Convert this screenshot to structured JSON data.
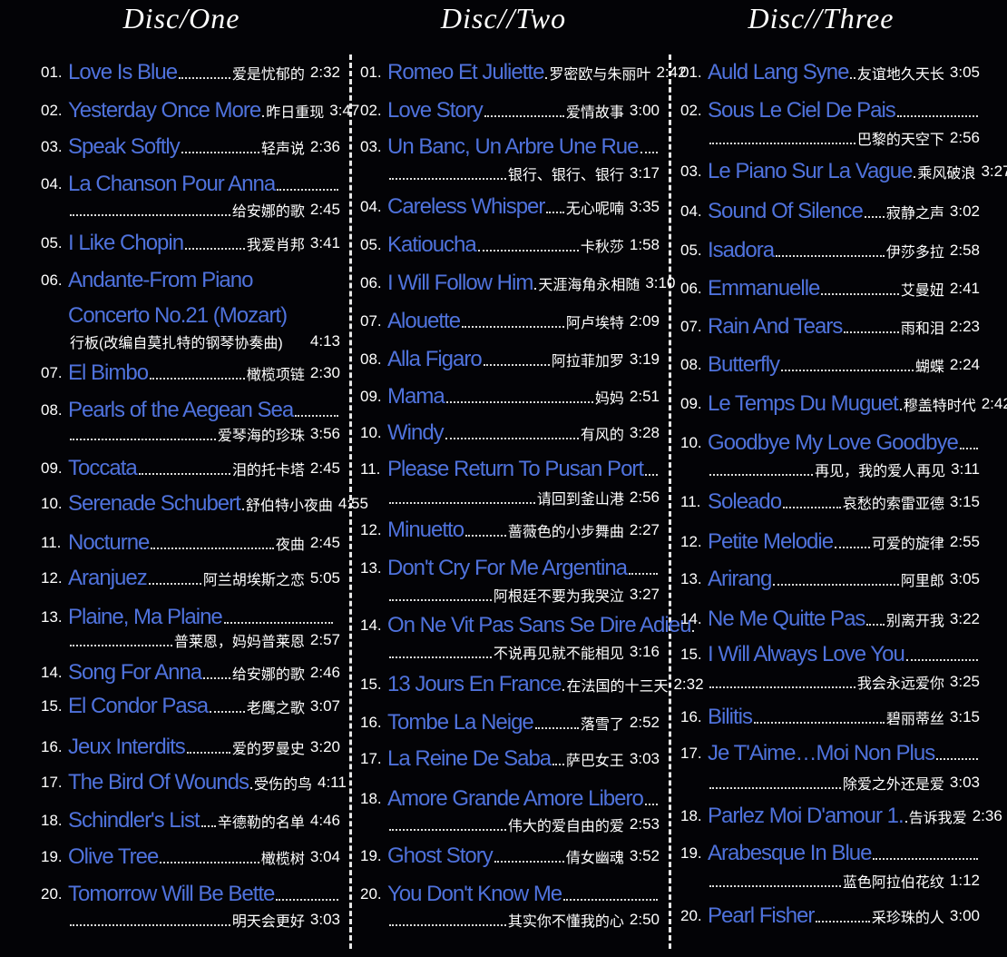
{
  "discs": [
    {
      "title": "Disc/One",
      "tracks": [
        {
          "number": "01.",
          "title": "Love Is Blue",
          "chinese": "爱是忧郁的",
          "time": "2:32"
        },
        {
          "number": "02.",
          "title": "Yesterday Once More",
          "chinese": "昨日重现",
          "time": "3:47"
        },
        {
          "number": "03.",
          "title": "Speak Softly",
          "chinese": "轻声说",
          "time": "2:36"
        },
        {
          "number": "04.",
          "title": "La Chanson Pour Anna",
          "chinese": "给安娜的歌",
          "time": "2:45"
        },
        {
          "number": "05.",
          "title": "I Like Chopin",
          "chinese": "我爱肖邦",
          "time": "3:41"
        },
        {
          "number": "06.",
          "title": "Andante-From Piano Concerto No.21 (Mozart)",
          "chinese": "行板(改编自莫扎特的钢琴协奏曲)",
          "time": "4:13"
        },
        {
          "number": "07.",
          "title": "El Bimbo",
          "chinese": "橄榄项链",
          "time": "2:30"
        },
        {
          "number": "08.",
          "title": "Pearls of the Aegean Sea",
          "chinese": "爱琴海的珍珠",
          "time": "3:56"
        },
        {
          "number": "09.",
          "title": "Toccata",
          "chinese": "泪的托卡塔",
          "time": "2:45"
        },
        {
          "number": "10.",
          "title": "Serenade Schubert",
          "chinese": "舒伯特小夜曲",
          "time": "4:55"
        },
        {
          "number": "11.",
          "title": "Nocturne",
          "chinese": "夜曲",
          "time": "2:45"
        },
        {
          "number": "12.",
          "title": "Aranjuez",
          "chinese": "阿兰胡埃斯之恋",
          "time": "5:05"
        },
        {
          "number": "13.",
          "title": "Plaine, Ma Plaine",
          "chinese": "普莱恩，妈妈普莱恩",
          "time": "2:57"
        },
        {
          "number": "14.",
          "title": "Song For Anna",
          "chinese": "给安娜的歌",
          "time": "2:46"
        },
        {
          "number": "15.",
          "title": "El Condor Pasa",
          "chinese": "老鹰之歌",
          "time": "3:07"
        },
        {
          "number": "16.",
          "title": "Jeux Interdits",
          "chinese": "爱的罗曼史",
          "time": "3:20"
        },
        {
          "number": "17.",
          "title": "The Bird Of Wounds",
          "chinese": "受伤的鸟",
          "time": "4:11"
        },
        {
          "number": "18.",
          "title": "Schindler's List",
          "chinese": "辛德勒的名单",
          "time": "4:46"
        },
        {
          "number": "19.",
          "title": "Olive Tree",
          "chinese": "橄榄树",
          "time": "3:04"
        },
        {
          "number": "20.",
          "title": "Tomorrow Will Be Bette",
          "chinese": "明天会更好",
          "time": "3:03"
        }
      ]
    },
    {
      "title": "Disc//Two",
      "tracks": [
        {
          "number": "01.",
          "title": "Romeo Et Juliette",
          "chinese": "罗密欧与朱丽叶",
          "time": "2:42"
        },
        {
          "number": "02.",
          "title": "Love Story",
          "chinese": "爱情故事",
          "time": "3:00"
        },
        {
          "number": "03.",
          "title": "Un Banc, Un Arbre Une Rue",
          "chinese": "银行、银行、银行",
          "time": "3:17"
        },
        {
          "number": "04.",
          "title": "Careless Whisper",
          "chinese": "无心呢喃",
          "time": "3:35"
        },
        {
          "number": "05.",
          "title": "Katioucha",
          "chinese": "卡秋莎",
          "time": "1:58"
        },
        {
          "number": "06.",
          "title": "I Will Follow Him",
          "chinese": "天涯海角永相随",
          "time": "3:10"
        },
        {
          "number": "07.",
          "title": "Alouette",
          "chinese": "阿卢埃特",
          "time": "2:09"
        },
        {
          "number": "08.",
          "title": "Alla Figaro",
          "chinese": "阿拉菲加罗",
          "time": "3:19"
        },
        {
          "number": "09.",
          "title": "Mama",
          "chinese": "妈妈",
          "time": "2:51"
        },
        {
          "number": "10.",
          "title": "Windy",
          "chinese": "有风的",
          "time": "3:28"
        },
        {
          "number": "11.",
          "title": "Please Return To Pusan Port",
          "chinese": "请回到釜山港",
          "time": "2:56"
        },
        {
          "number": "12.",
          "title": "Minuetto",
          "chinese": "蔷薇色的小步舞曲",
          "time": "2:27"
        },
        {
          "number": "13.",
          "title": "Don't Cry For Me Argentina",
          "chinese": "阿根廷不要为我哭泣",
          "time": "3:27"
        },
        {
          "number": "14.",
          "title": "On Ne Vit Pas Sans Se Dire Adieu",
          "chinese": "不说再见就不能相见",
          "time": "3:16"
        },
        {
          "number": "15.",
          "title": "13 Jours En France",
          "chinese": "在法国的十三天",
          "time": "2:32"
        },
        {
          "number": "16.",
          "title": "Tombe La Neige",
          "chinese": "落雪了",
          "time": "2:52"
        },
        {
          "number": "17.",
          "title": "La Reine De Saba",
          "chinese": "萨巴女王",
          "time": "3:03"
        },
        {
          "number": "18.",
          "title": "Amore Grande Amore Libero",
          "chinese": "伟大的爱自由的爱",
          "time": "2:53"
        },
        {
          "number": "19.",
          "title": "Ghost Story",
          "chinese": "倩女幽魂",
          "time": "3:52"
        },
        {
          "number": "20.",
          "title": "You Don't Know Me",
          "chinese": "其实你不懂我的心",
          "time": "2:50"
        }
      ]
    },
    {
      "title": "Disc//Three",
      "tracks": [
        {
          "number": "01.",
          "title": "Auld Lang Syne",
          "chinese": "友谊地久天长",
          "time": "3:05"
        },
        {
          "number": "02.",
          "title": "Sous Le Ciel De Pais",
          "chinese": "巴黎的天空下",
          "time": "2:56"
        },
        {
          "number": "03.",
          "title": "Le Piano Sur La Vague",
          "chinese": "乘风破浪",
          "time": "3:27"
        },
        {
          "number": "04.",
          "title": "Sound Of Silence",
          "chinese": "寂静之声",
          "time": "3:02"
        },
        {
          "number": "05.",
          "title": "Isadora",
          "chinese": "伊莎多拉",
          "time": "2:58"
        },
        {
          "number": "06.",
          "title": "Emmanuelle",
          "chinese": "艾曼妞",
          "time": "2:41"
        },
        {
          "number": "07.",
          "title": "Rain And Tears",
          "chinese": "雨和泪",
          "time": "2:23"
        },
        {
          "number": "08.",
          "title": "Butterfly",
          "chinese": "蝴蝶",
          "time": "2:24"
        },
        {
          "number": "09.",
          "title": "Le Temps Du Muguet",
          "chinese": "穆盖特时代",
          "time": "2:42"
        },
        {
          "number": "10.",
          "title": "Goodbye My Love Goodbye",
          "chinese": "再见，我的爱人再见",
          "time": "3:11"
        },
        {
          "number": "11.",
          "title": "Soleado",
          "chinese": "哀愁的索雷亚德",
          "time": "3:15"
        },
        {
          "number": "12.",
          "title": "Petite Melodie",
          "chinese": "可爱的旋律",
          "time": "2:55"
        },
        {
          "number": "13.",
          "title": "Arirang",
          "chinese": "阿里郎",
          "time": "3:05"
        },
        {
          "number": "14.",
          "title": "Ne Me Quitte Pas",
          "chinese": "别离开我",
          "time": "3:22"
        },
        {
          "number": "15.",
          "title": "I Will Always Love You",
          "chinese": "我会永远爱你",
          "time": "3:25"
        },
        {
          "number": "16.",
          "title": "Bilitis",
          "chinese": "碧丽蒂丝",
          "time": "3:15"
        },
        {
          "number": "17.",
          "title": "Je T'Aime…Moi Non Plus",
          "chinese": "除爱之外还是爱",
          "time": "3:03"
        },
        {
          "number": "18.",
          "title": "Parlez Moi D'amour 1.",
          "chinese": "告诉我爱",
          "time": "2:36"
        },
        {
          "number": "19.",
          "title": "Arabesque In Blue",
          "chinese": "蓝色阿拉伯花纹",
          "time": "1:12"
        },
        {
          "number": "20.",
          "title": "Pearl Fisher",
          "chinese": "采珍珠的人",
          "time": "3:00"
        }
      ]
    }
  ]
}
